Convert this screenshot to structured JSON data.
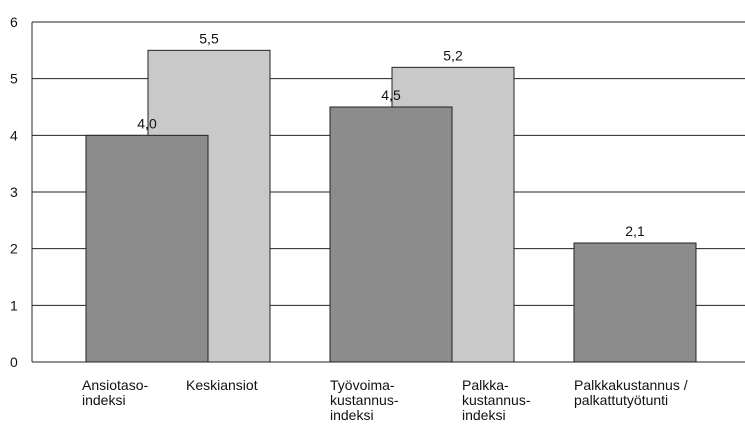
{
  "chart_data": {
    "type": "bar",
    "categories": [
      "Ansiotaso-\nindeksi",
      "Keskiansiot",
      "Työvoima-\nkustannus-\nindeksi",
      "Palkka-\nkustannus-\nindeksi",
      "Palkkakustannus /\npalkattutyötunti"
    ],
    "values": [
      4.0,
      5.5,
      4.5,
      5.2,
      2.1
    ],
    "value_labels": [
      "4,0",
      "5,5",
      "4,5",
      "5,2",
      "2,1"
    ],
    "colors": [
      "#8c8c8c",
      "#c9c9c9",
      "#8c8c8c",
      "#c9c9c9",
      "#8c8c8c"
    ],
    "ylim": [
      0,
      6
    ],
    "yticks": [
      0,
      1,
      2,
      3,
      4,
      5,
      6
    ],
    "grid": true
  }
}
